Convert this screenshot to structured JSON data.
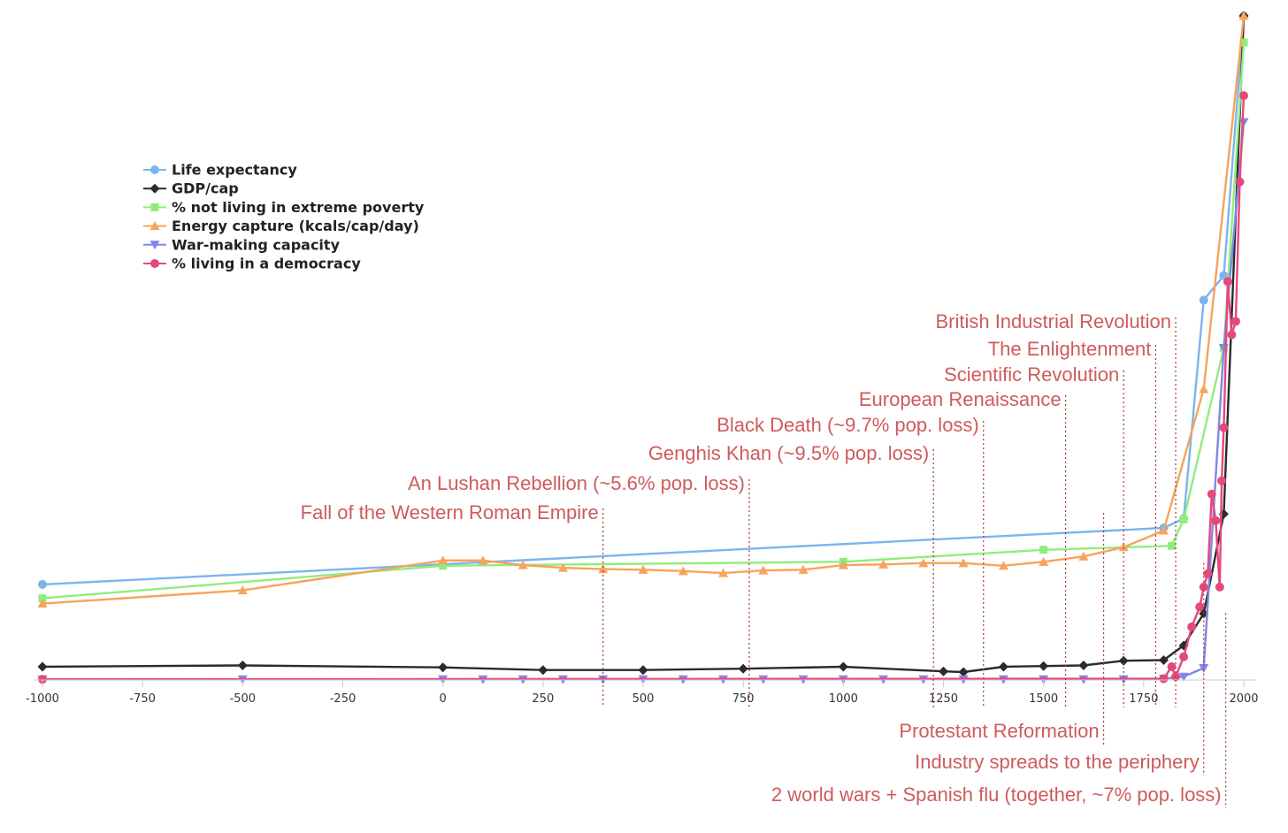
{
  "chart_data": {
    "type": "line",
    "title": "",
    "xlabel": "",
    "ylabel": "",
    "xlim": [
      -1000,
      2010
    ],
    "ylim": [
      0,
      100
    ],
    "grid": false,
    "legend_position": "top-left",
    "x_ticks": [
      -1000,
      -750,
      -500,
      -250,
      0,
      250,
      500,
      750,
      1000,
      1250,
      1500,
      1750,
      2000
    ],
    "x_tick_labels": [
      "-1000",
      "-750",
      "-500",
      "-250",
      "0",
      "250",
      "500",
      "750",
      "1000",
      "1250",
      "1500",
      "1750",
      "2000"
    ],
    "series": [
      {
        "name": "Life expectancy",
        "color": "#7cb5ec",
        "marker": "circle",
        "points": [
          [
            -1000,
            14.4
          ],
          [
            1800,
            22.9
          ],
          [
            1850,
            24.3
          ],
          [
            1900,
            57.2
          ],
          [
            1950,
            60.9
          ],
          [
            2000,
            100
          ]
        ]
      },
      {
        "name": "GDP/cap",
        "color": "#2b2b2b",
        "marker": "diamond",
        "points": [
          [
            -1000,
            2.0
          ],
          [
            -500,
            2.2
          ],
          [
            0,
            1.9
          ],
          [
            250,
            1.5
          ],
          [
            500,
            1.5
          ],
          [
            750,
            1.7
          ],
          [
            1000,
            2.0
          ],
          [
            1250,
            1.3
          ],
          [
            1300,
            1.2
          ],
          [
            1400,
            2.0
          ],
          [
            1500,
            2.1
          ],
          [
            1600,
            2.2
          ],
          [
            1700,
            2.9
          ],
          [
            1800,
            3.0
          ],
          [
            1850,
            5.2
          ],
          [
            1900,
            10.0
          ],
          [
            1950,
            25.0
          ],
          [
            2000,
            100
          ]
        ]
      },
      {
        "name": "% not living in extreme poverty",
        "color": "#90ed7d",
        "marker": "square",
        "points": [
          [
            -1000,
            12.3
          ],
          [
            0,
            17.2
          ],
          [
            1000,
            17.8
          ],
          [
            1500,
            19.6
          ],
          [
            1820,
            20.2
          ],
          [
            1850,
            24.2
          ],
          [
            1950,
            50.0
          ],
          [
            2000,
            96.0
          ]
        ]
      },
      {
        "name": "Energy capture (kcals/cap/day)",
        "color": "#f7a35c",
        "marker": "triangle",
        "points": [
          [
            -1000,
            11.5
          ],
          [
            -500,
            13.5
          ],
          [
            0,
            18.0
          ],
          [
            100,
            18.0
          ],
          [
            200,
            17.3
          ],
          [
            300,
            16.9
          ],
          [
            400,
            16.7
          ],
          [
            500,
            16.6
          ],
          [
            600,
            16.4
          ],
          [
            700,
            16.1
          ],
          [
            800,
            16.5
          ],
          [
            900,
            16.6
          ],
          [
            1000,
            17.3
          ],
          [
            1100,
            17.4
          ],
          [
            1200,
            17.6
          ],
          [
            1300,
            17.6
          ],
          [
            1400,
            17.2
          ],
          [
            1500,
            17.8
          ],
          [
            1600,
            18.6
          ],
          [
            1700,
            20.0
          ],
          [
            1800,
            22.5
          ],
          [
            1900,
            43.8
          ],
          [
            2000,
            100
          ]
        ]
      },
      {
        "name": "War-making capacity",
        "color": "#8085e9",
        "marker": "triangle-down",
        "points": [
          [
            -1000,
            0.1
          ],
          [
            -500,
            0.1
          ],
          [
            0,
            0.1
          ],
          [
            100,
            0.1
          ],
          [
            200,
            0.1
          ],
          [
            300,
            0.1
          ],
          [
            400,
            0.1
          ],
          [
            500,
            0.1
          ],
          [
            600,
            0.1
          ],
          [
            700,
            0.1
          ],
          [
            800,
            0.1
          ],
          [
            900,
            0.1
          ],
          [
            1000,
            0.1
          ],
          [
            1100,
            0.1
          ],
          [
            1200,
            0.1
          ],
          [
            1300,
            0.1
          ],
          [
            1400,
            0.1
          ],
          [
            1500,
            0.1
          ],
          [
            1600,
            0.1
          ],
          [
            1700,
            0.1
          ],
          [
            1800,
            0.2
          ],
          [
            1850,
            0.5
          ],
          [
            1900,
            1.8
          ],
          [
            1950,
            50.0
          ],
          [
            2000,
            84.0
          ]
        ]
      },
      {
        "name": "% living in a democracy",
        "color": "#e4497b",
        "marker": "circle",
        "points": [
          [
            -1000,
            0.1
          ],
          [
            1800,
            0.2
          ],
          [
            1820,
            2.0
          ],
          [
            1830,
            0.5
          ],
          [
            1850,
            3.5
          ],
          [
            1870,
            8.0
          ],
          [
            1890,
            11.0
          ],
          [
            1900,
            14.0
          ],
          [
            1910,
            16.0
          ],
          [
            1920,
            28.0
          ],
          [
            1930,
            24.0
          ],
          [
            1940,
            14.0
          ],
          [
            1945,
            30.0
          ],
          [
            1950,
            38.0
          ],
          [
            1960,
            60.0
          ],
          [
            1970,
            52.0
          ],
          [
            1980,
            54.0
          ],
          [
            1990,
            75.0
          ],
          [
            2000,
            88.0
          ]
        ]
      }
    ],
    "events": [
      {
        "label": "Fall of the Western Roman Empire",
        "year": 400
      },
      {
        "label": "An Lushan Rebellion (~5.6% pop. loss)",
        "year": 765
      },
      {
        "label": "Genghis Khan (~9.5% pop. loss)",
        "year": 1225
      },
      {
        "label": "Black Death (~9.7% pop. loss)",
        "year": 1350
      },
      {
        "label": "European Renaissance",
        "year": 1555
      },
      {
        "label": "Scientific Revolution",
        "year": 1700
      },
      {
        "label": "The Enlightenment",
        "year": 1780
      },
      {
        "label": "British Industrial Revolution",
        "year": 1830
      },
      {
        "label": "Protestant Reformation",
        "year": 1650
      },
      {
        "label": "Industry spreads to the periphery",
        "year": 1900
      },
      {
        "label": "2 world wars + Spanish flu (together, ~7%  pop. loss)",
        "year": 1955
      }
    ]
  }
}
